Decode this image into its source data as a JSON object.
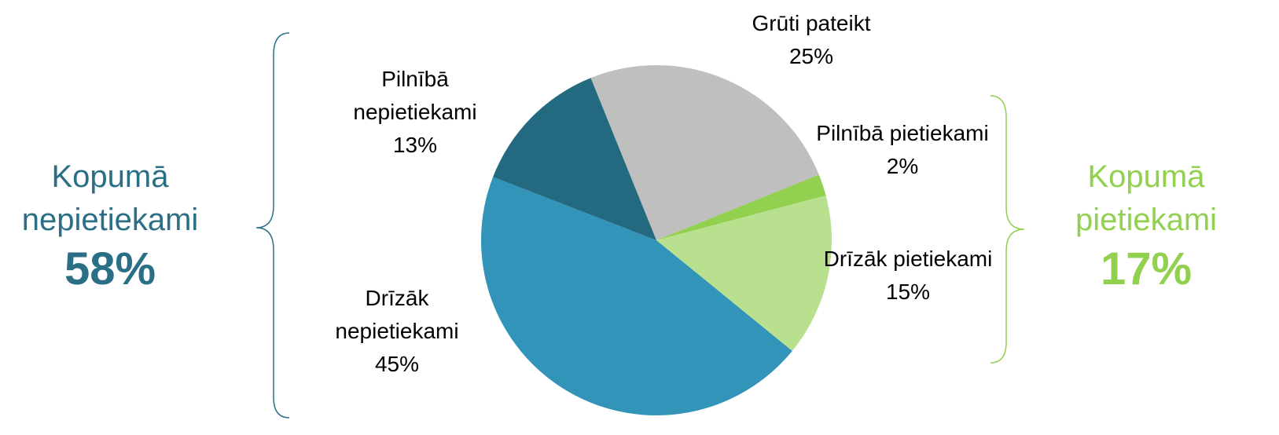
{
  "chart_data": {
    "type": "pie",
    "categories": [
      "Grūti pateikt",
      "Pilnībā pietiekami",
      "Drīzāk pietiekami",
      "Drīzāk nepietiekami",
      "Pilnībā nepietiekami"
    ],
    "values": [
      25,
      2,
      15,
      45,
      13
    ],
    "value_labels": [
      "25%",
      "2%",
      "15%",
      "45%",
      "13%"
    ],
    "colors": [
      "#bfbfbf",
      "#92d050",
      "#b8e08e",
      "#3194b8",
      "#236a80"
    ],
    "annotations": [
      {
        "label": "Kopumā nepietiekami",
        "value": 58,
        "value_label": "58%",
        "color": "#2b6f86"
      },
      {
        "label": "Kopumā pietiekami",
        "value": 17,
        "value_label": "17%",
        "color": "#92d050"
      }
    ]
  }
}
